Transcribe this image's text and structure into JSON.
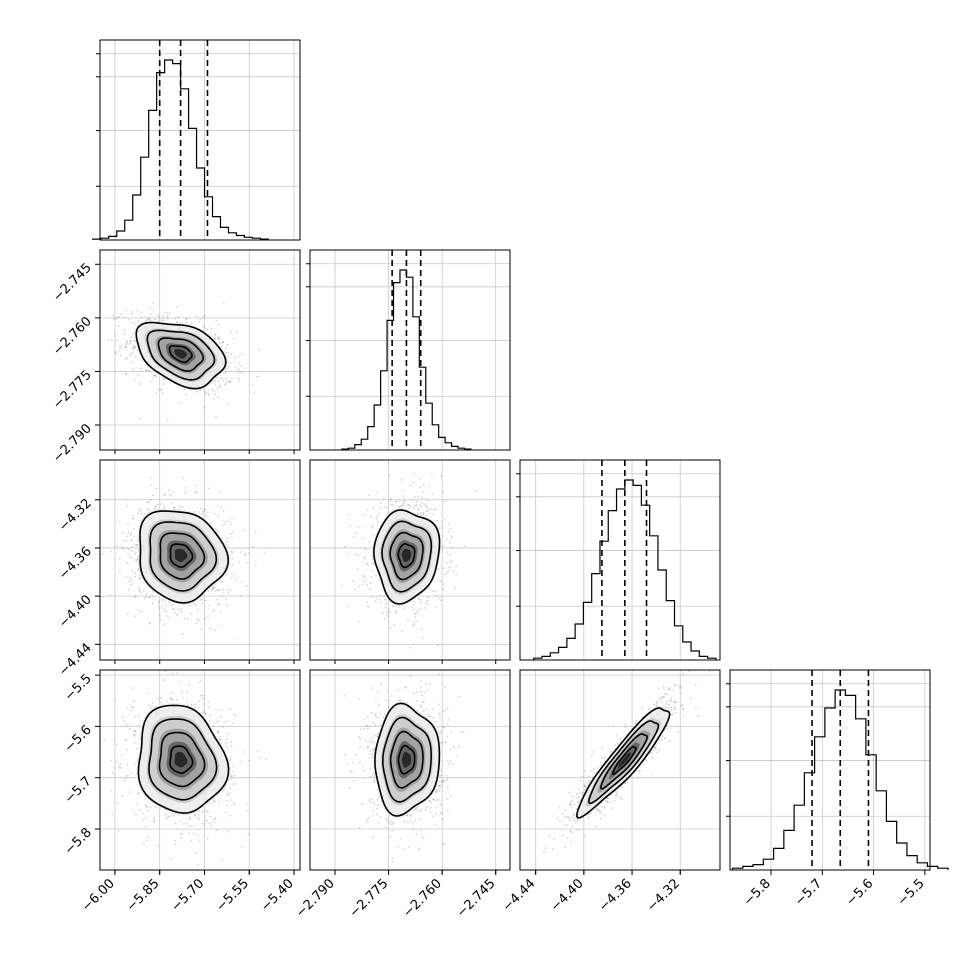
{
  "chart_data": {
    "type": "corner",
    "parameters": [
      {
        "ticks": [
          -6.0,
          -5.85,
          -5.7,
          -5.55,
          -5.4
        ],
        "tick_labels": [
          "−6.00",
          "−5.85",
          "−5.70",
          "−5.55",
          "−5.40"
        ],
        "range": [
          -6.05,
          -5.38
        ],
        "quantiles": [
          -5.85,
          -5.78,
          -5.69
        ],
        "hist_bins": [
          0.005,
          0.01,
          0.02,
          0.05,
          0.11,
          0.25,
          0.46,
          0.72,
          0.93,
          1.0,
          0.98,
          0.84,
          0.62,
          0.4,
          0.24,
          0.13,
          0.07,
          0.04,
          0.025,
          0.015,
          0.01,
          0.005
        ],
        "mean": -5.78,
        "sd": 0.07
      },
      {
        "ticks": [
          -2.79,
          -2.775,
          -2.76,
          -2.745
        ],
        "tick_labels": [
          "−2.790",
          "−2.775",
          "−2.760",
          "−2.745"
        ],
        "range": [
          -2.797,
          -2.741
        ],
        "quantiles": [
          -2.774,
          -2.77,
          -2.766
        ],
        "hist_bins": [
          0.005,
          0.01,
          0.03,
          0.06,
          0.13,
          0.25,
          0.44,
          0.72,
          0.93,
          1.0,
          0.96,
          0.74,
          0.46,
          0.26,
          0.14,
          0.07,
          0.04,
          0.02,
          0.01,
          0.005
        ],
        "mean": -2.77,
        "sd": 0.0043
      },
      {
        "ticks": [
          -4.44,
          -4.4,
          -4.36,
          -4.32
        ],
        "tick_labels": [
          "−4.44",
          "−4.40",
          "−4.36",
          "−4.32"
        ],
        "range": [
          -4.453,
          -4.287
        ],
        "quantiles": [
          -4.385,
          -4.366,
          -4.348
        ],
        "hist_bins": [
          0.01,
          0.02,
          0.04,
          0.07,
          0.12,
          0.2,
          0.32,
          0.48,
          0.66,
          0.83,
          0.95,
          1.0,
          0.97,
          0.86,
          0.69,
          0.5,
          0.33,
          0.19,
          0.1,
          0.05,
          0.02,
          0.01
        ],
        "mean": -4.366,
        "sd": 0.018
      },
      {
        "ticks": [
          -5.8,
          -5.7,
          -5.6,
          -5.5
        ],
        "tick_labels": [
          "−5.8",
          "−5.7",
          "−5.6",
          "−5.5"
        ],
        "range": [
          -5.88,
          -5.49
        ],
        "quantiles": [
          -5.72,
          -5.665,
          -5.61
        ],
        "hist_bins": [
          0.01,
          0.02,
          0.03,
          0.06,
          0.12,
          0.22,
          0.36,
          0.54,
          0.74,
          0.9,
          1.0,
          0.97,
          0.84,
          0.64,
          0.44,
          0.27,
          0.15,
          0.08,
          0.04,
          0.02,
          0.01
        ],
        "mean": -5.665,
        "sd": 0.05
      }
    ],
    "correlations": [
      [
        1,
        -0.35,
        -0.1,
        -0.1
      ],
      [
        -0.35,
        1,
        0.05,
        0.05
      ],
      [
        -0.1,
        0.05,
        1,
        0.92
      ],
      [
        -0.1,
        0.05,
        0.92,
        1
      ]
    ],
    "samples_per_panel": 1100,
    "contour_levels_sigma": [
      0.5,
      1.0,
      1.5,
      2.0
    ],
    "colors": {
      "points": "#808080",
      "hist": "#000000",
      "contour": "#000000",
      "grid": "#c8c8c8"
    },
    "grid": true
  }
}
